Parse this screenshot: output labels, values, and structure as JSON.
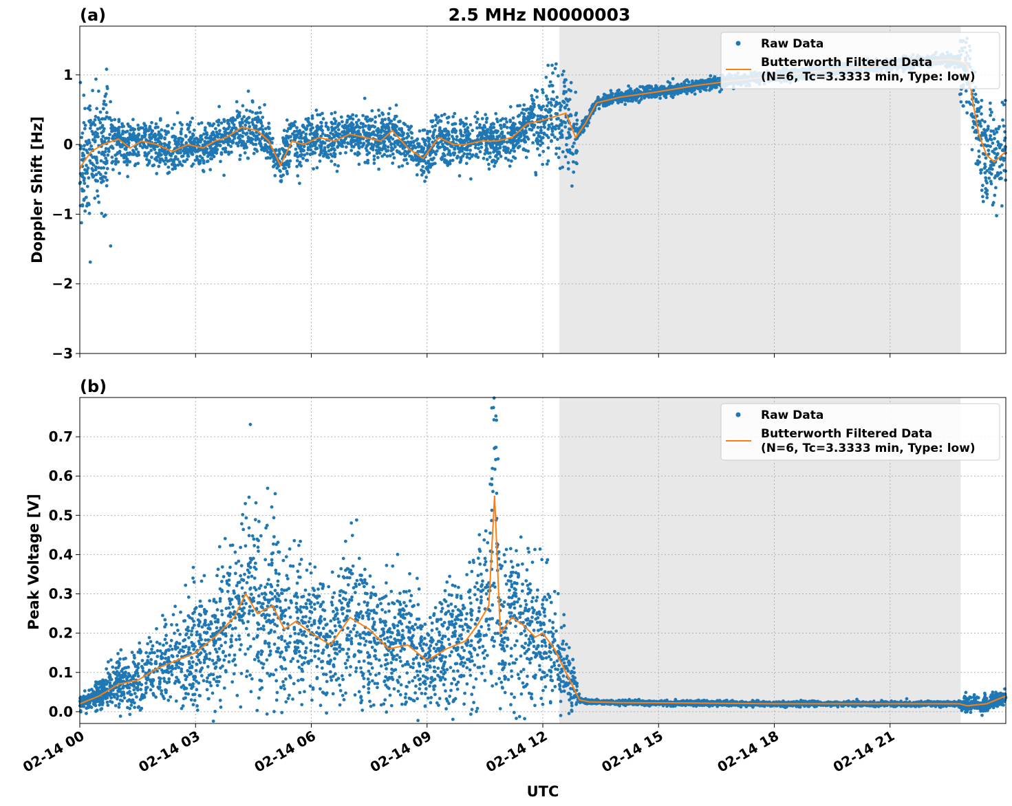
{
  "figure": {
    "title": "2.5 MHz N0000003",
    "xlabel": "UTC"
  },
  "chart_data": [
    {
      "type": "scatter",
      "panel_label": "(a)",
      "title": "2.5 MHz N0000003",
      "ylabel": "Doppler Shift [Hz]",
      "xlabel": "",
      "x_unit": "hours since 02-14 00 UTC",
      "xlim": [
        0,
        24
      ],
      "ylim": [
        -3,
        1.7
      ],
      "yticks": [
        -3,
        -2,
        -1,
        0,
        1
      ],
      "yticklabels": [
        "−3",
        "−2",
        "−1",
        "0",
        "1"
      ],
      "shaded_region": [
        12.43,
        22.83
      ],
      "grid": true,
      "legend_position": "top-right",
      "series": [
        {
          "name": "Raw Data",
          "kind": "scatter",
          "color": "#1f77b4"
        },
        {
          "name": "Butterworth Filtered Data",
          "name_line2": "(N=6, Tc=3.3333 min, Type: low)",
          "kind": "line",
          "color": "#ff7f0e",
          "x": [
            0,
            0.1,
            0.3,
            0.6,
            1.0,
            1.3,
            1.6,
            2.0,
            2.4,
            2.8,
            3.2,
            3.5,
            3.8,
            4.2,
            4.6,
            4.9,
            5.2,
            5.5,
            5.8,
            6.2,
            6.6,
            7.0,
            7.4,
            7.8,
            8.1,
            8.5,
            8.9,
            9.3,
            9.7,
            10.0,
            10.4,
            10.8,
            11.2,
            11.6,
            12.0,
            12.3,
            12.6,
            12.85,
            13.1,
            13.4,
            14.0,
            15.0,
            16.0,
            17.0,
            18.0,
            19.0,
            20.0,
            21.0,
            22.0,
            22.5,
            22.8,
            23.0,
            23.15,
            23.3,
            23.5,
            23.7,
            24.0
          ],
          "y": [
            -0.35,
            -0.25,
            -0.1,
            0.0,
            0.08,
            -0.05,
            0.05,
            0.0,
            -0.1,
            0.0,
            -0.05,
            0.05,
            0.1,
            0.25,
            0.2,
            0.05,
            -0.3,
            0.05,
            0.0,
            0.1,
            0.05,
            0.15,
            0.1,
            0.05,
            0.2,
            -0.05,
            -0.2,
            0.1,
            0.0,
            0.0,
            0.05,
            0.05,
            0.1,
            0.3,
            0.35,
            0.4,
            0.45,
            0.1,
            0.3,
            0.6,
            0.68,
            0.76,
            0.85,
            0.92,
            0.98,
            1.04,
            1.1,
            1.15,
            1.2,
            1.22,
            1.2,
            1.15,
            0.6,
            0.15,
            -0.15,
            -0.25,
            -0.1
          ]
        }
      ]
    },
    {
      "type": "scatter",
      "panel_label": "(b)",
      "title": "",
      "ylabel": "Peak Voltage [V]",
      "xlabel": "UTC",
      "x_unit": "hours since 02-14 00 UTC",
      "xlim": [
        0,
        24
      ],
      "ylim": [
        -0.03,
        0.8
      ],
      "yticks": [
        0.0,
        0.1,
        0.2,
        0.3,
        0.4,
        0.5,
        0.6,
        0.7
      ],
      "yticklabels": [
        "0.0",
        "0.1",
        "0.2",
        "0.3",
        "0.4",
        "0.5",
        "0.6",
        "0.7"
      ],
      "xticks": [
        0,
        3,
        6,
        9,
        12,
        15,
        18,
        21
      ],
      "xticklabels": [
        "02-14 00",
        "02-14 03",
        "02-14 06",
        "02-14 09",
        "02-14 12",
        "02-14 15",
        "02-14 18",
        "02-14 21"
      ],
      "shaded_region": [
        12.43,
        22.83
      ],
      "grid": true,
      "legend_position": "top-right",
      "series": [
        {
          "name": "Raw Data",
          "kind": "scatter",
          "color": "#1f77b4"
        },
        {
          "name": "Butterworth Filtered Data",
          "name_line2": "(N=6, Tc=3.3333 min, Type: low)",
          "kind": "line",
          "color": "#ff7f0e",
          "x": [
            0,
            0.5,
            1.0,
            1.5,
            2.0,
            2.5,
            3.0,
            3.5,
            4.0,
            4.3,
            4.6,
            5.0,
            5.3,
            5.6,
            6.0,
            6.5,
            7.0,
            7.5,
            8.0,
            8.5,
            9.0,
            9.5,
            10.0,
            10.3,
            10.6,
            10.75,
            10.9,
            11.2,
            11.5,
            11.8,
            12.0,
            12.3,
            12.6,
            12.8,
            12.95,
            13.2,
            14.0,
            16.0,
            18.0,
            20.0,
            22.0,
            22.5,
            22.8,
            23.0,
            23.5,
            24.0
          ],
          "y": [
            0.02,
            0.04,
            0.07,
            0.08,
            0.11,
            0.13,
            0.15,
            0.19,
            0.24,
            0.3,
            0.25,
            0.27,
            0.21,
            0.23,
            0.2,
            0.17,
            0.24,
            0.21,
            0.16,
            0.17,
            0.13,
            0.16,
            0.18,
            0.22,
            0.27,
            0.55,
            0.2,
            0.24,
            0.22,
            0.19,
            0.2,
            0.16,
            0.1,
            0.06,
            0.03,
            0.025,
            0.023,
            0.022,
            0.02,
            0.02,
            0.02,
            0.02,
            0.02,
            0.015,
            0.02,
            0.04
          ]
        }
      ]
    }
  ]
}
